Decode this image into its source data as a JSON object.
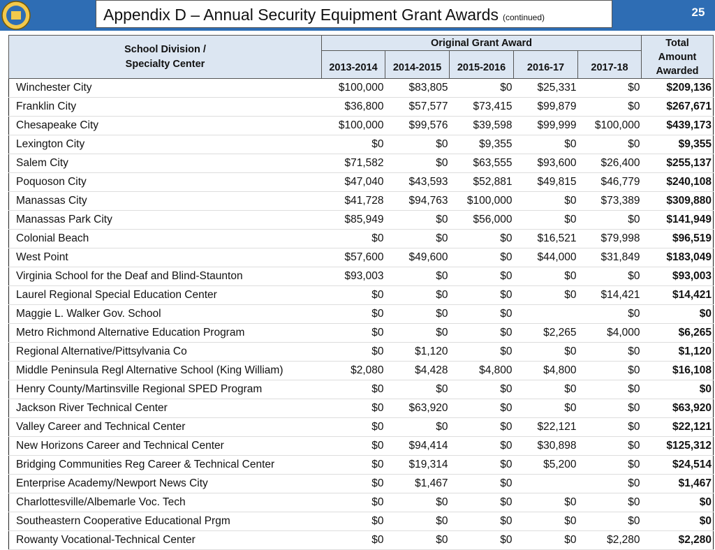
{
  "header": {
    "title": "Appendix D – Annual Security Equipment Grant Awards",
    "subtitle": "(continued)",
    "page_number": "25"
  },
  "table": {
    "name_header": [
      "School Division /",
      "Specialty Center"
    ],
    "group_header": "Original Grant Award",
    "total_header": "Total Amount Awarded",
    "year_headers": [
      "2013-2014",
      "2014-2015",
      "2015-2016",
      "2016-17",
      "2017-18"
    ],
    "rows": [
      [
        "Winchester City",
        "$100,000",
        "$83,805",
        "$0",
        "$25,331",
        "$0",
        "$209,136"
      ],
      [
        "Franklin City",
        "$36,800",
        "$57,577",
        "$73,415",
        "$99,879",
        "$0",
        "$267,671"
      ],
      [
        "Chesapeake City",
        "$100,000",
        "$99,576",
        "$39,598",
        "$99,999",
        "$100,000",
        "$439,173"
      ],
      [
        "Lexington City",
        "$0",
        "$0",
        "$9,355",
        "$0",
        "$0",
        "$9,355"
      ],
      [
        "Salem City",
        "$71,582",
        "$0",
        "$63,555",
        "$93,600",
        "$26,400",
        "$255,137"
      ],
      [
        "Poquoson City",
        "$47,040",
        "$43,593",
        "$52,881",
        "$49,815",
        "$46,779",
        "$240,108"
      ],
      [
        "Manassas City",
        "$41,728",
        "$94,763",
        "$100,000",
        "$0",
        "$73,389",
        "$309,880"
      ],
      [
        "Manassas Park City",
        "$85,949",
        "$0",
        "$56,000",
        "$0",
        "$0",
        "$141,949"
      ],
      [
        "Colonial Beach",
        "$0",
        "$0",
        "$0",
        "$16,521",
        "$79,998",
        "$96,519"
      ],
      [
        "West Point",
        "$57,600",
        "$49,600",
        "$0",
        "$44,000",
        "$31,849",
        "$183,049"
      ],
      [
        "Virginia School for the Deaf and Blind-Staunton",
        "$93,003",
        "$0",
        "$0",
        "$0",
        "$0",
        "$93,003"
      ],
      [
        "Laurel Regional Special Education Center",
        "$0",
        "$0",
        "$0",
        "$0",
        "$14,421",
        "$14,421"
      ],
      [
        "Maggie L. Walker Gov. School",
        "$0",
        "$0",
        "$0",
        null,
        "$0",
        "$0"
      ],
      [
        "Metro Richmond Alternative Education Program",
        "$0",
        "$0",
        "$0",
        "$2,265",
        "$4,000",
        "$6,265"
      ],
      [
        "Regional Alternative/Pittsylvania Co",
        "$0",
        "$1,120",
        "$0",
        "$0",
        "$0",
        "$1,120"
      ],
      [
        "Middle Peninsula Regl Alternative School (King William)",
        "$2,080",
        "$4,428",
        "$4,800",
        "$4,800",
        "$0",
        "$16,108"
      ],
      [
        "Henry County/Martinsville Regional SPED Program",
        "$0",
        "$0",
        "$0",
        "$0",
        "$0",
        "$0"
      ],
      [
        "Jackson River Technical Center",
        "$0",
        "$63,920",
        "$0",
        "$0",
        "$0",
        "$63,920"
      ],
      [
        "Valley Career and Technical Center",
        "$0",
        "$0",
        "$0",
        "$22,121",
        "$0",
        "$22,121"
      ],
      [
        "New Horizons Career and Technical Center",
        "$0",
        "$94,414",
        "$0",
        "$30,898",
        "$0",
        "$125,312"
      ],
      [
        "Bridging Communities Reg Career & Technical Center",
        "$0",
        "$19,314",
        "$0",
        "$5,200",
        "$0",
        "$24,514"
      ],
      [
        "Enterprise Academy/Newport News City",
        "$0",
        "$1,467",
        "$0",
        null,
        "$0",
        "$1,467"
      ],
      [
        "Charlottesville/Albemarle Voc. Tech",
        "$0",
        "$0",
        "$0",
        "$0",
        "$0",
        "$0"
      ],
      [
        "Southeastern Cooperative Educational Prgm",
        "$0",
        "$0",
        "$0",
        "$0",
        "$0",
        "$0"
      ],
      [
        "Rowanty Vocational-Technical Center",
        "$0",
        "$0",
        "$0",
        "$0",
        "$2,280",
        "$2,280"
      ]
    ]
  }
}
